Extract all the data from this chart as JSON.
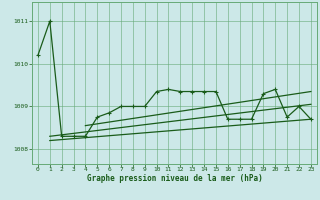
{
  "pressure_data": [
    1010.2,
    1011.0,
    1008.3,
    1008.3,
    1008.3,
    1008.75,
    1008.85,
    1009.0,
    1009.0,
    1009.0,
    1009.35,
    1009.4,
    1009.35,
    1009.35,
    1009.35,
    1009.35,
    1008.7,
    1008.7,
    1008.7,
    1009.3,
    1009.4,
    1008.75,
    1009.0,
    1008.7
  ],
  "trend_line1_x": [
    1,
    23
  ],
  "trend_line1_y": [
    1008.2,
    1008.7
  ],
  "trend_line2_x": [
    1,
    23
  ],
  "trend_line2_y": [
    1008.3,
    1009.05
  ],
  "trend_line3_x": [
    4,
    23
  ],
  "trend_line3_y": [
    1008.55,
    1009.35
  ],
  "background_color": "#cce8e8",
  "grid_color": "#66aa77",
  "line_color": "#1a5c1a",
  "xlabel": "Graphe pression niveau de la mer (hPa)",
  "yticks": [
    1008,
    1009,
    1010,
    1011
  ],
  "xticks": [
    0,
    1,
    2,
    3,
    4,
    5,
    6,
    7,
    8,
    9,
    10,
    11,
    12,
    13,
    14,
    15,
    16,
    17,
    18,
    19,
    20,
    21,
    22,
    23
  ],
  "ylim": [
    1007.65,
    1011.45
  ],
  "xlim": [
    -0.5,
    23.5
  ]
}
